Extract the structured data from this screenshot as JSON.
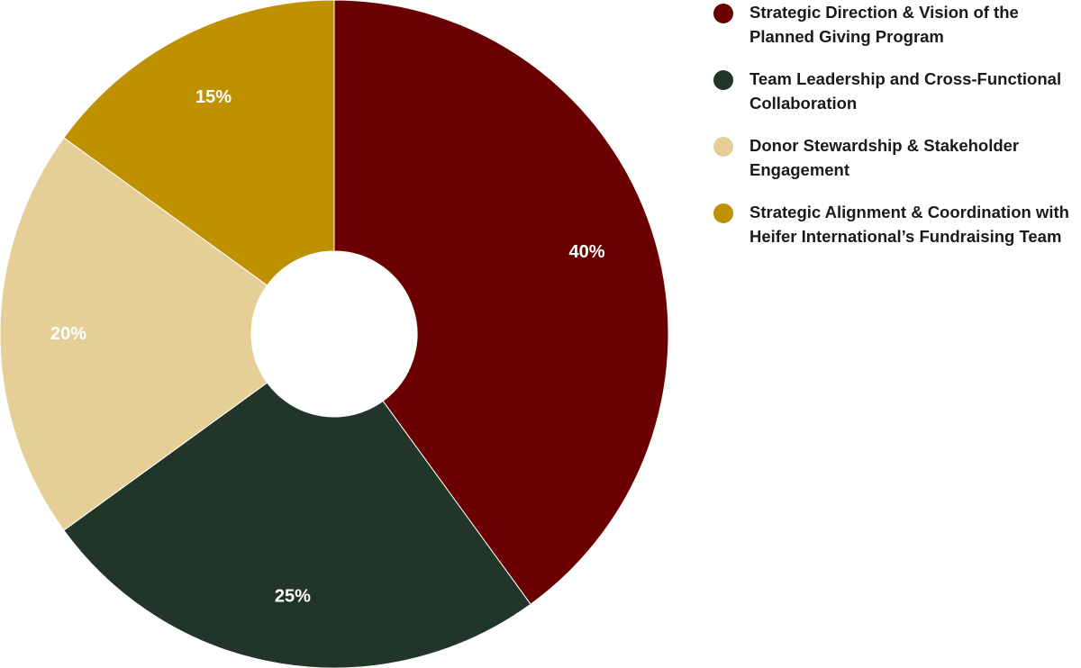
{
  "chart_data": {
    "type": "pie",
    "variant": "donut",
    "title": "",
    "categories": [
      "Strategic Direction & Vision of the Planned Giving Program",
      "Team Leadership and Cross-Functional Collaboration",
      "Donor Stewardship & Stakeholder Engagement",
      "Strategic Alignment & Coordination with Heifer International’s Fundraising Team"
    ],
    "values": [
      40,
      25,
      20,
      15
    ],
    "data_labels": [
      "40%",
      "25%",
      "20%",
      "15%"
    ],
    "colors": [
      "#6B0000",
      "#213628",
      "#E6CF97",
      "#BF9000"
    ],
    "legend_placement": "right"
  }
}
